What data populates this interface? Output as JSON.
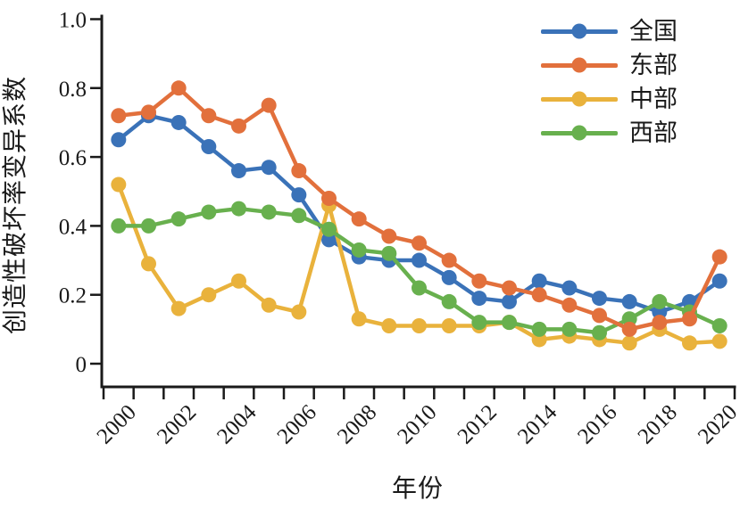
{
  "chart_data": {
    "type": "line",
    "title": "",
    "xlabel": "年份",
    "ylabel": "创造性破坏率变异系数",
    "categories": [
      "2000",
      "2001",
      "2002",
      "2003",
      "2004",
      "2005",
      "2006",
      "2007",
      "2008",
      "2009",
      "2010",
      "2011",
      "2012",
      "2013",
      "2014",
      "2015",
      "2016",
      "2017",
      "2018",
      "2019",
      "2020"
    ],
    "x_axis": {
      "labeled_ticks": [
        "2000",
        "2002",
        "2004",
        "2006",
        "2008",
        "2010",
        "2012",
        "2014",
        "2016",
        "2018",
        "2020"
      ],
      "label_every": 2,
      "tick_label_rotation_deg": -45
    },
    "y_axis": {
      "ticks": [
        0,
        0.2,
        0.4,
        0.6,
        0.8,
        1.0
      ],
      "tick_labels": [
        "0",
        "0.2",
        "0.4",
        "0.6",
        "0.8",
        "1.0"
      ],
      "range_min": 0,
      "range_max": 1.0
    },
    "grid": false,
    "legend_position": "top-right",
    "marker": "circle",
    "series": [
      {
        "name": "全国",
        "color": "#3A72B8",
        "values": [
          0.65,
          0.72,
          0.7,
          0.63,
          0.56,
          0.57,
          0.49,
          0.36,
          0.31,
          0.3,
          0.3,
          0.25,
          0.19,
          0.18,
          0.24,
          0.22,
          0.19,
          0.18,
          0.15,
          0.18,
          0.24
        ]
      },
      {
        "name": "东部",
        "color": "#E2703C",
        "values": [
          0.72,
          0.73,
          0.8,
          0.72,
          0.69,
          0.75,
          0.56,
          0.48,
          0.42,
          0.37,
          0.35,
          0.3,
          0.24,
          0.22,
          0.2,
          0.17,
          0.14,
          0.1,
          0.12,
          0.13,
          0.31
        ]
      },
      {
        "name": "中部",
        "color": "#E9B23C",
        "values": [
          0.52,
          0.29,
          0.16,
          0.2,
          0.24,
          0.17,
          0.15,
          0.46,
          0.13,
          0.11,
          0.11,
          0.11,
          0.11,
          0.12,
          0.07,
          0.08,
          0.07,
          0.06,
          0.1,
          0.06,
          0.065
        ]
      },
      {
        "name": "西部",
        "color": "#68B04E",
        "values": [
          0.4,
          0.4,
          0.42,
          0.44,
          0.45,
          0.44,
          0.43,
          0.39,
          0.33,
          0.32,
          0.22,
          0.18,
          0.12,
          0.12,
          0.1,
          0.1,
          0.09,
          0.13,
          0.18,
          0.15,
          0.11
        ]
      }
    ]
  }
}
